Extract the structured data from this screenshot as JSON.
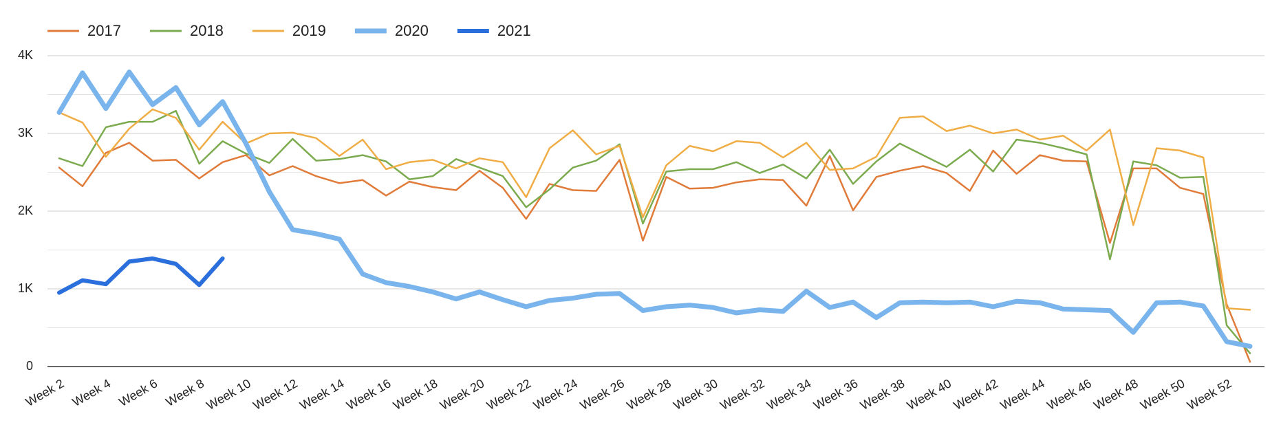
{
  "chart_data": {
    "type": "line",
    "categories": [
      "Week 2",
      null,
      "Week 4",
      null,
      "Week 6",
      null,
      "Week 8",
      null,
      "Week 10",
      null,
      "Week 12",
      null,
      "Week 14",
      null,
      "Week 16",
      null,
      "Week 18",
      null,
      "Week 20",
      null,
      "Week 22",
      null,
      "Week 24",
      null,
      "Week 26",
      null,
      "Week 28",
      null,
      "Week 30",
      null,
      "Week 32",
      null,
      "Week 34",
      null,
      "Week 36",
      null,
      "Week 38",
      null,
      "Week 40",
      null,
      "Week 42",
      null,
      "Week 44",
      null,
      "Week 46",
      null,
      "Week 48",
      null,
      "Week 50",
      null,
      "Week 52",
      null
    ],
    "series": [
      {
        "name": "2017",
        "color": "#e07b39",
        "width": 2.5,
        "values": [
          2560,
          2320,
          2750,
          2880,
          2650,
          2660,
          2420,
          2630,
          2720,
          2460,
          2580,
          2450,
          2360,
          2400,
          2200,
          2380,
          2310,
          2270,
          2520,
          2300,
          1900,
          2350,
          2270,
          2260,
          2660,
          1620,
          2440,
          2290,
          2300,
          2370,
          2410,
          2400,
          2070,
          2710,
          2010,
          2440,
          2520,
          2580,
          2490,
          2260,
          2780,
          2480,
          2720,
          2650,
          2640,
          1590,
          2550,
          2550,
          2300,
          2220,
          800,
          60
        ]
      },
      {
        "name": "2018",
        "color": "#7cab4f",
        "width": 2.5,
        "values": [
          2680,
          2580,
          3080,
          3150,
          3150,
          3290,
          2610,
          2900,
          2740,
          2620,
          2930,
          2650,
          2670,
          2720,
          2640,
          2410,
          2450,
          2670,
          2560,
          2450,
          2050,
          2280,
          2560,
          2650,
          2860,
          1840,
          2510,
          2540,
          2540,
          2630,
          2490,
          2600,
          2420,
          2790,
          2350,
          2640,
          2870,
          2720,
          2570,
          2790,
          2510,
          2920,
          2880,
          2810,
          2730,
          1380,
          2640,
          2590,
          2430,
          2440,
          530,
          170
        ]
      },
      {
        "name": "2019",
        "color": "#f0ad45",
        "width": 2.5,
        "values": [
          3270,
          3140,
          2700,
          3060,
          3310,
          3200,
          2790,
          3150,
          2870,
          3000,
          3010,
          2940,
          2710,
          2920,
          2540,
          2630,
          2660,
          2550,
          2680,
          2630,
          2180,
          2810,
          3040,
          2730,
          2840,
          1920,
          2590,
          2840,
          2770,
          2900,
          2880,
          2690,
          2880,
          2530,
          2550,
          2700,
          3200,
          3220,
          3030,
          3100,
          3000,
          3050,
          2920,
          2970,
          2780,
          3050,
          1820,
          2810,
          2780,
          2690,
          750,
          730
        ]
      },
      {
        "name": "2020",
        "color": "#79b4ec",
        "width": 7,
        "values": [
          3270,
          3780,
          3320,
          3790,
          3370,
          3590,
          3110,
          3410,
          2870,
          2250,
          1760,
          1710,
          1640,
          1190,
          1080,
          1030,
          960,
          870,
          960,
          860,
          770,
          850,
          880,
          930,
          940,
          720,
          770,
          790,
          760,
          690,
          730,
          710,
          970,
          760,
          830,
          630,
          820,
          830,
          820,
          830,
          770,
          840,
          820,
          740,
          730,
          720,
          440,
          820,
          830,
          780,
          320,
          260
        ]
      },
      {
        "name": "2021",
        "color": "#2a6fdb",
        "width": 6,
        "values": [
          950,
          1110,
          1060,
          1350,
          1390,
          1320,
          1050,
          1390,
          null,
          null,
          null,
          null,
          null,
          null,
          null,
          null,
          null,
          null,
          null,
          null,
          null,
          null,
          null,
          null,
          null,
          null,
          null,
          null,
          null,
          null,
          null,
          null,
          null,
          null,
          null,
          null,
          null,
          null,
          null,
          null,
          null,
          null,
          null,
          null,
          null,
          null,
          null,
          null,
          null,
          null,
          null,
          null
        ]
      }
    ],
    "ylim": [
      0,
      4000
    ],
    "yticks": [
      0,
      {
        "value": 1000,
        "label": "1K"
      },
      {
        "value": 2000,
        "label": "2K"
      },
      {
        "value": 3000,
        "label": "3K"
      },
      {
        "value": 4000,
        "label": "4K"
      }
    ],
    "minor_gridlines": [
      500,
      1500,
      2500,
      3500
    ],
    "grid": true,
    "legend": "top-left"
  }
}
